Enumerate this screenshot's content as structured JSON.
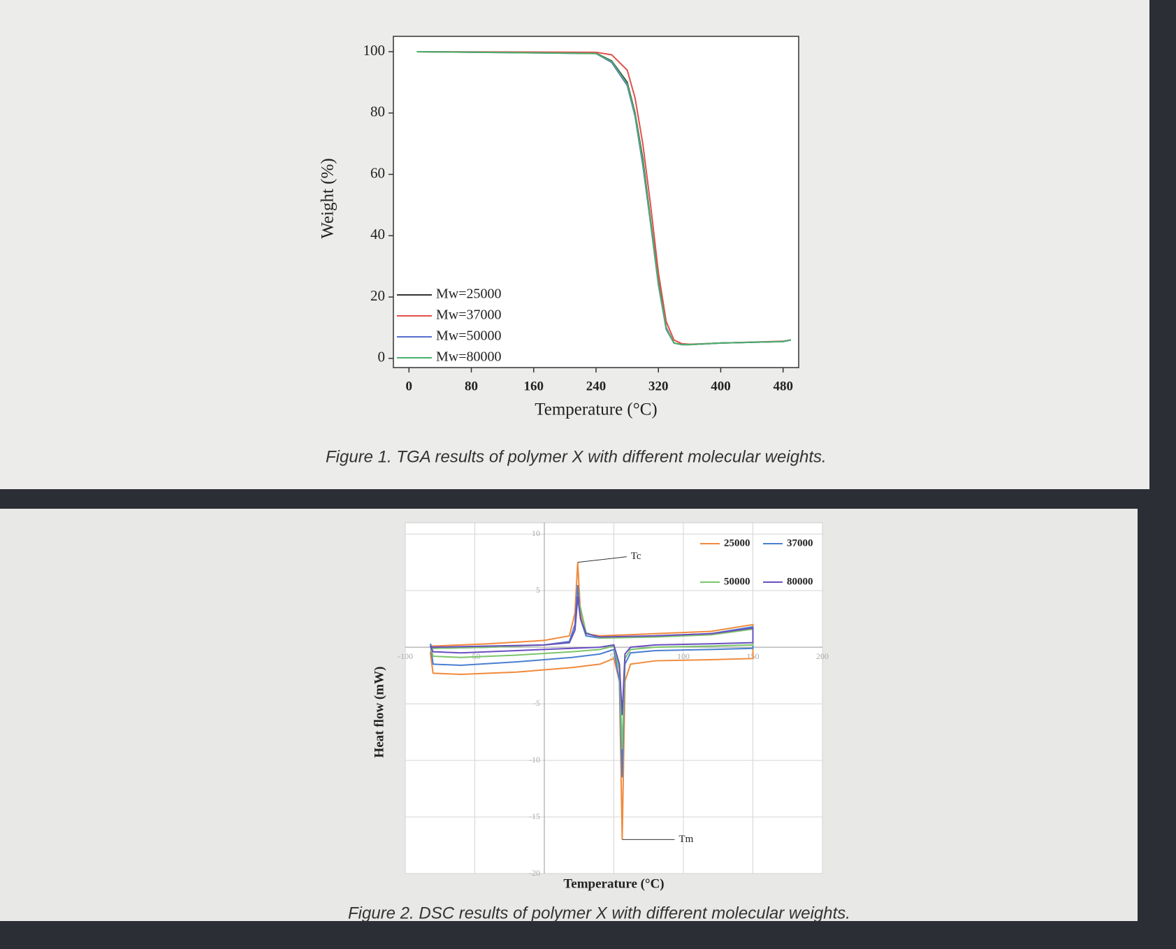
{
  "chart_data": [
    {
      "type": "line",
      "x_label": "Temperature (°C)",
      "y_label": "Weight (%)",
      "caption": "Figure 1. TGA results of polymer X with different molecular weights.",
      "x": [
        10,
        240,
        260,
        280,
        290,
        300,
        310,
        320,
        330,
        340,
        350,
        360,
        400,
        480,
        490
      ],
      "series": [
        {
          "name": "Mw=25000",
          "color": "#333333",
          "values": [
            100,
            99.5,
            97,
            90,
            80,
            65,
            45,
            25,
            10,
            5,
            4.5,
            4.5,
            5,
            5.5,
            6
          ]
        },
        {
          "name": "Mw=37000",
          "color": "#e0504a",
          "values": [
            100,
            99.8,
            99,
            94,
            85,
            70,
            50,
            28,
            12,
            6,
            4.8,
            4.6,
            5,
            5.6,
            6
          ]
        },
        {
          "name": "Mw=50000",
          "color": "#5a6fd0",
          "values": [
            100,
            99.4,
            96.5,
            89,
            79,
            63,
            44,
            24,
            9.5,
            5,
            4.5,
            4.5,
            5,
            5.5,
            6
          ]
        },
        {
          "name": "Mw=80000",
          "color": "#4caf6a",
          "values": [
            100,
            99.4,
            96.8,
            89.5,
            79.5,
            64,
            44.5,
            24.5,
            9.8,
            5,
            4.5,
            4.5,
            5,
            5.5,
            6
          ]
        }
      ],
      "xlim": [
        -20,
        500
      ],
      "xticks": [
        0,
        80,
        160,
        240,
        320,
        400,
        480
      ],
      "ylim": [
        -3,
        105
      ],
      "yticks": [
        0,
        20,
        40,
        60,
        80,
        100
      ],
      "grid": false,
      "legend": "lower left"
    },
    {
      "type": "line",
      "x_label": "Temperature (°C)",
      "y_label": "Heat flow (mW)",
      "caption": "Figure 2. DSC results of polymer X with different molecular weights.",
      "annotations": [
        "Tc",
        "Tm"
      ],
      "x": [
        -82,
        -80,
        -60,
        -20,
        20,
        40,
        50,
        54,
        56,
        58,
        62,
        80,
        120,
        150,
        150,
        120,
        80,
        40,
        30,
        26,
        24,
        22,
        18,
        0,
        -40,
        -80,
        -82
      ],
      "series": [
        {
          "name": "25000",
          "color": "#f08a3c",
          "values": [
            -0.5,
            -2.3,
            -2.4,
            -2.2,
            -1.8,
            -1.5,
            -1.0,
            -3,
            -17,
            -3,
            -1.5,
            -1.2,
            -1.1,
            -1.0,
            2.0,
            1.4,
            1.2,
            1.0,
            1.2,
            3,
            7.5,
            3,
            1,
            0.6,
            0.3,
            0.1,
            -0.5
          ]
        },
        {
          "name": "37000",
          "color": "#4a7fd0",
          "values": [
            0.3,
            -1.5,
            -1.6,
            -1.3,
            -0.9,
            -0.6,
            -0.2,
            -3,
            -11.5,
            -1.5,
            -0.5,
            -0.3,
            -0.2,
            -0.1,
            1.8,
            1.2,
            1.0,
            0.8,
            1,
            2.5,
            5.5,
            2,
            0.5,
            0.2,
            0,
            -0.1,
            0.3
          ]
        },
        {
          "name": "50000",
          "color": "#7cc46a",
          "values": [
            0.2,
            -0.8,
            -0.9,
            -0.7,
            -0.4,
            -0.2,
            0.1,
            -2,
            -9,
            -1,
            -0.2,
            0,
            0.1,
            0.2,
            1.6,
            1.1,
            0.9,
            0.8,
            1.3,
            3.5,
            4.2,
            1.5,
            0.4,
            0.2,
            0,
            -0.1,
            0.2
          ]
        },
        {
          "name": "80000",
          "color": "#6a4fc0",
          "values": [
            0.1,
            -0.4,
            -0.5,
            -0.3,
            -0.1,
            0,
            0.2,
            -1.5,
            -6,
            -0.6,
            0,
            0.2,
            0.3,
            0.4,
            1.7,
            1.2,
            1.0,
            0.9,
            1.2,
            2.5,
            4.5,
            1.5,
            0.4,
            0.2,
            0.1,
            0,
            0.1
          ]
        }
      ],
      "xlim": [
        -100,
        200
      ],
      "xticks": [
        -100,
        -50,
        50,
        100,
        150,
        200
      ],
      "ylim": [
        -20,
        11
      ],
      "yticks": [
        10,
        5,
        -5,
        -10,
        -15,
        -20
      ],
      "grid": true,
      "legend": "upper right"
    }
  ]
}
